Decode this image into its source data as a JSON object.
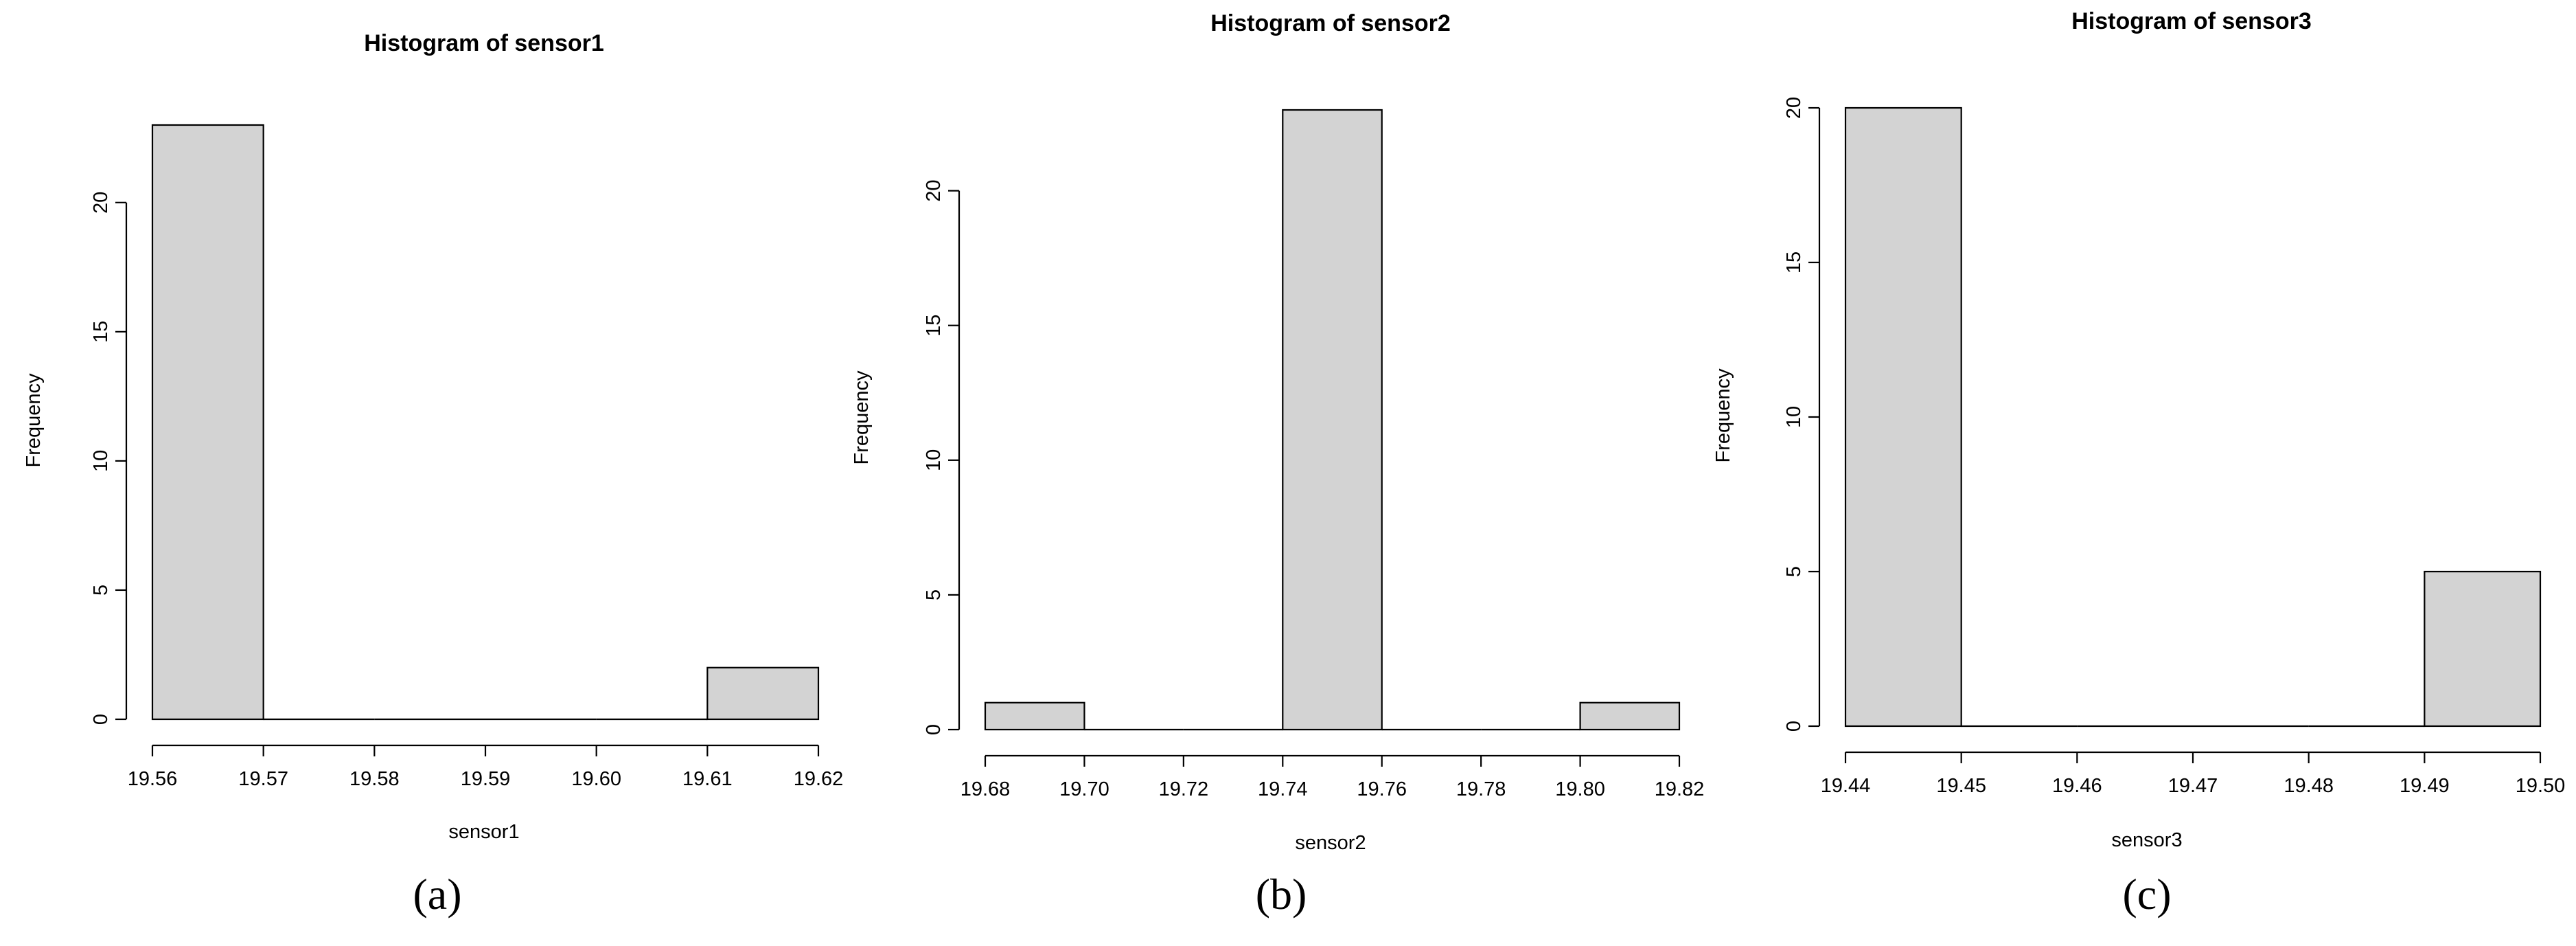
{
  "chart_data": [
    {
      "type": "bar",
      "title": "Histogram of sensor1",
      "xlabel": "sensor1",
      "ylabel": "Frequency",
      "panel_label": "(a)",
      "bins": [
        19.56,
        19.57,
        19.58,
        19.59,
        19.6,
        19.61,
        19.62
      ],
      "counts": [
        23,
        0,
        0,
        0,
        0,
        2
      ],
      "xticks": [
        "19.56",
        "19.57",
        "19.58",
        "19.59",
        "19.60",
        "19.61",
        "19.62"
      ],
      "yticks": [
        "0",
        "5",
        "10",
        "15",
        "20"
      ],
      "xlim": [
        19.56,
        19.62
      ],
      "ylim": [
        0,
        23
      ],
      "grid": false,
      "bar_color": "#d3d3d3"
    },
    {
      "type": "bar",
      "title": "Histogram of sensor2",
      "xlabel": "sensor2",
      "ylabel": "Frequency",
      "panel_label": "(b)",
      "bins": [
        19.68,
        19.7,
        19.72,
        19.74,
        19.76,
        19.78,
        19.8,
        19.82
      ],
      "counts": [
        1,
        0,
        0,
        23,
        0,
        0,
        1
      ],
      "xticks": [
        "19.68",
        "19.70",
        "19.72",
        "19.74",
        "19.76",
        "19.78",
        "19.80",
        "19.82"
      ],
      "yticks": [
        "0",
        "5",
        "10",
        "15",
        "20"
      ],
      "xlim": [
        19.68,
        19.82
      ],
      "ylim": [
        0,
        23
      ],
      "grid": false,
      "bar_color": "#d3d3d3"
    },
    {
      "type": "bar",
      "title": "Histogram of sensor3",
      "xlabel": "sensor3",
      "ylabel": "Frequency",
      "panel_label": "(c)",
      "bins": [
        19.44,
        19.45,
        19.46,
        19.47,
        19.48,
        19.49,
        19.5
      ],
      "counts": [
        20,
        0,
        0,
        0,
        0,
        5
      ],
      "xticks": [
        "19.44",
        "19.45",
        "19.46",
        "19.47",
        "19.48",
        "19.49",
        "19.50"
      ],
      "yticks": [
        "0",
        "5",
        "10",
        "15",
        "20"
      ],
      "xlim": [
        19.44,
        19.5
      ],
      "ylim": [
        0,
        20
      ],
      "grid": false,
      "bar_color": "#d3d3d3"
    }
  ]
}
